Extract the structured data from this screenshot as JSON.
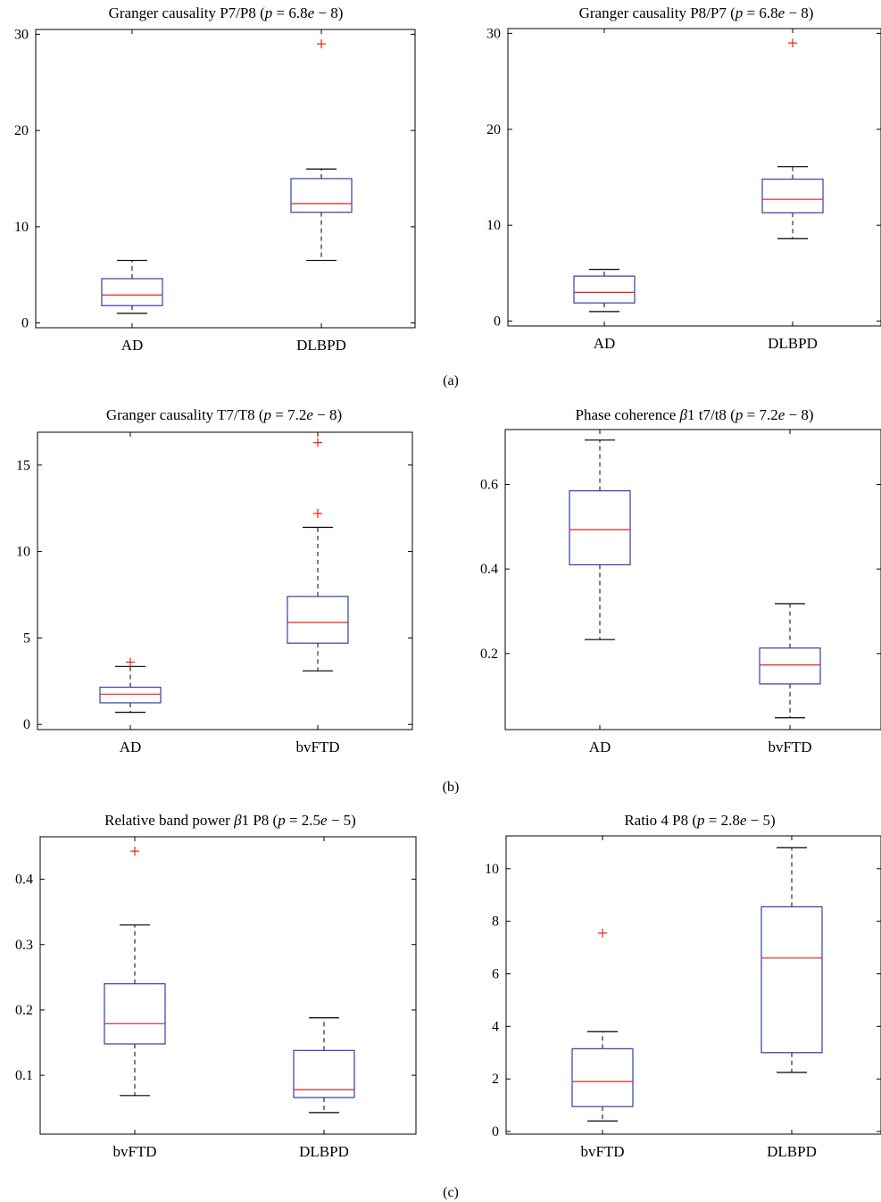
{
  "colors": {
    "box": "#2f3fa8",
    "median": "#e8201c",
    "outlier": "#e8201c",
    "whisker": "#000000",
    "axes": "#000000"
  },
  "panel_labels": [
    "(a)",
    "(b)",
    "(c)"
  ],
  "chart_data": [
    {
      "type": "box",
      "title": {
        "pre": "Granger causality P7/P8 (",
        "p": "p",
        "mid": " = 6.8",
        "e": "e",
        "post": " − 8)"
      },
      "categories": [
        "AD",
        "DLBPD"
      ],
      "ylim": [
        -0.5,
        30.5
      ],
      "yticks": [
        0,
        10,
        20,
        30
      ],
      "ytick_labels": [
        "0",
        "10",
        "20",
        "30"
      ],
      "grid": false,
      "boxes": [
        {
          "whisker_low": 1.0,
          "q1": 1.8,
          "median": 2.9,
          "q3": 4.6,
          "whisker_high": 6.5,
          "outliers": []
        },
        {
          "whisker_low": 6.5,
          "q1": 11.5,
          "median": 12.4,
          "q3": 15.0,
          "whisker_high": 16.0,
          "outliers": [
            29.0
          ]
        }
      ]
    },
    {
      "type": "box",
      "title": {
        "pre": "Granger causality P8/P7 (",
        "p": "p",
        "mid": " = 6.8",
        "e": "e",
        "post": " − 8)"
      },
      "categories": [
        "AD",
        "DLBPD"
      ],
      "ylim": [
        -0.5,
        30.5
      ],
      "yticks": [
        0,
        10,
        20,
        30
      ],
      "ytick_labels": [
        "0",
        "10",
        "20",
        "30"
      ],
      "grid": false,
      "boxes": [
        {
          "whisker_low": 1.0,
          "q1": 1.9,
          "median": 3.0,
          "q3": 4.7,
          "whisker_high": 5.4,
          "outliers": []
        },
        {
          "whisker_low": 8.6,
          "q1": 11.3,
          "median": 12.7,
          "q3": 14.8,
          "whisker_high": 16.1,
          "outliers": [
            29.0
          ]
        }
      ]
    },
    {
      "type": "box",
      "title": {
        "pre": "Granger causality T7/T8 (",
        "p": "p",
        "mid": " = 7.2",
        "e": "e",
        "post": " − 8)"
      },
      "categories": [
        "AD",
        "bvFTD"
      ],
      "ylim": [
        -0.3,
        16.9
      ],
      "yticks": [
        0,
        5,
        10,
        15
      ],
      "ytick_labels": [
        "0",
        "5",
        "10",
        "15"
      ],
      "grid": false,
      "boxes": [
        {
          "whisker_low": 0.7,
          "q1": 1.25,
          "median": 1.75,
          "q3": 2.15,
          "whisker_high": 3.35,
          "outliers": [
            3.6
          ]
        },
        {
          "whisker_low": 3.1,
          "q1": 4.7,
          "median": 5.9,
          "q3": 7.4,
          "whisker_high": 11.4,
          "outliers": [
            12.2,
            16.3
          ]
        }
      ]
    },
    {
      "type": "box",
      "title": {
        "pre": "Phase coherence ",
        "beta": "β",
        "pre2": "1 t7/t8 (",
        "p": "p",
        "mid": " = 7.2",
        "e": "e",
        "post": " − 8)"
      },
      "categories": [
        "AD",
        "bvFTD"
      ],
      "ylim": [
        0.02,
        0.73
      ],
      "yticks": [
        0.2,
        0.4,
        0.6
      ],
      "ytick_labels": [
        "0.2",
        "0.4",
        "0.6"
      ],
      "grid": false,
      "boxes": [
        {
          "whisker_low": 0.233,
          "q1": 0.41,
          "median": 0.493,
          "q3": 0.585,
          "whisker_high": 0.705,
          "outliers": []
        },
        {
          "whisker_low": 0.048,
          "q1": 0.128,
          "median": 0.173,
          "q3": 0.213,
          "whisker_high": 0.318,
          "outliers": []
        }
      ]
    },
    {
      "type": "box",
      "title": {
        "pre": "Relative band power ",
        "beta": "β",
        "pre2": "1 P8 (",
        "p": "p",
        "mid": " = 2.5",
        "e": "e",
        "post": " − 5)"
      },
      "categories": [
        "bvFTD",
        "DLBPD"
      ],
      "ylim": [
        0.01,
        0.465
      ],
      "yticks": [
        0.1,
        0.2,
        0.3,
        0.4
      ],
      "ytick_labels": [
        "0.1",
        "0.2",
        "0.3",
        "0.4"
      ],
      "grid": false,
      "boxes": [
        {
          "whisker_low": 0.069,
          "q1": 0.148,
          "median": 0.179,
          "q3": 0.24,
          "whisker_high": 0.33,
          "outliers": [
            0.443
          ]
        },
        {
          "whisker_low": 0.043,
          "q1": 0.066,
          "median": 0.078,
          "q3": 0.138,
          "whisker_high": 0.188,
          "outliers": []
        }
      ]
    },
    {
      "type": "box",
      "title": {
        "pre": "Ratio 4 P8 (",
        "p": "p",
        "mid": " = 2.8",
        "e": "e",
        "post": " − 5)"
      },
      "categories": [
        "bvFTD",
        "DLBPD"
      ],
      "ylim": [
        -0.1,
        11.25
      ],
      "yticks": [
        0,
        2,
        4,
        6,
        8,
        10
      ],
      "ytick_labels": [
        "0",
        "2",
        "4",
        "6",
        "8",
        "10"
      ],
      "grid": false,
      "boxes": [
        {
          "whisker_low": 0.4,
          "q1": 0.95,
          "median": 1.9,
          "q3": 3.15,
          "whisker_high": 3.8,
          "outliers": [
            7.55
          ]
        },
        {
          "whisker_low": 2.25,
          "q1": 3.0,
          "median": 6.6,
          "q3": 8.55,
          "whisker_high": 10.8,
          "outliers": []
        }
      ]
    }
  ]
}
